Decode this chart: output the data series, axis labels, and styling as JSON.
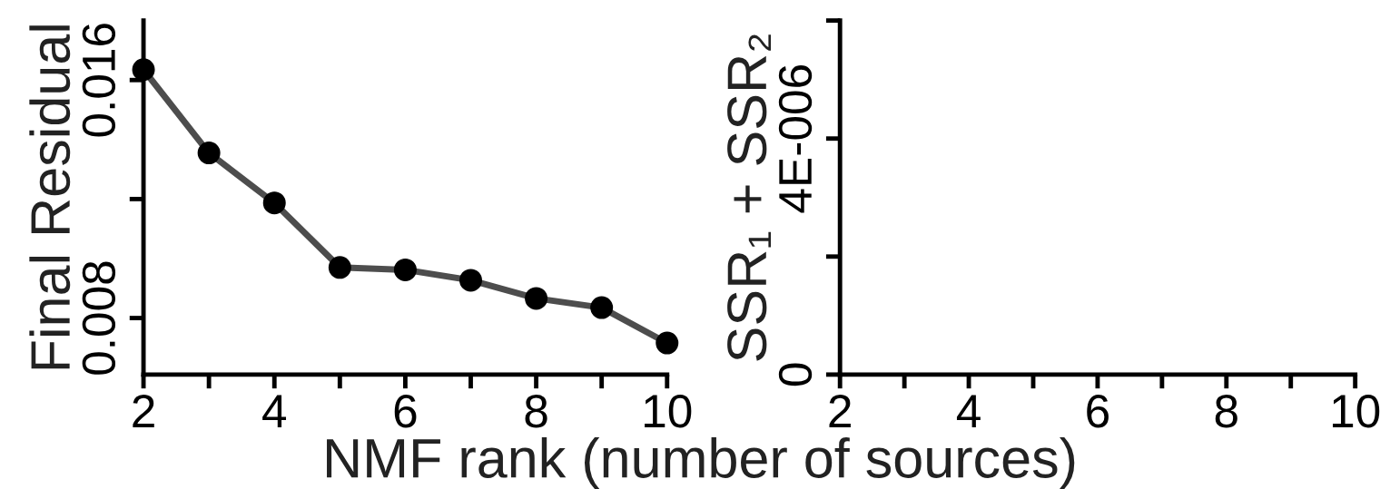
{
  "chart_data": [
    {
      "type": "line",
      "xlabel": "NMF rank (number of sources)",
      "ylabel": "Final Residual",
      "x": [
        2,
        3,
        4,
        5,
        6,
        7,
        8,
        9,
        10
      ],
      "series": [
        {
          "color": "#4d4d4d",
          "values": [
            0.01635,
            0.01355,
            0.01187,
            0.0097,
            0.00962,
            0.00927,
            0.00866,
            0.00835,
            0.00716
          ]
        }
      ],
      "marker": "circle",
      "line_style": "solid",
      "grid": false,
      "legend": false,
      "xlim": [
        2,
        10
      ],
      "xticks": [
        2,
        {
          "value": 3,
          "label": null
        },
        4,
        {
          "value": 5,
          "label": null
        },
        6,
        {
          "value": 7,
          "label": null
        },
        8,
        {
          "value": 9,
          "label": null
        },
        10
      ],
      "ylim": [
        0.0061,
        0.018
      ],
      "yticks": [
        {
          "value": 0.008,
          "label": "0.008"
        },
        {
          "value": 0.012,
          "label": null
        },
        {
          "value": 0.016,
          "label": "0.016"
        }
      ]
    },
    {
      "type": "line",
      "ylabel": "SSR₁ + SSR₂",
      "grid": false,
      "legend": false,
      "xlim": [
        2,
        10
      ],
      "xticks": [
        2,
        {
          "value": 3,
          "label": null
        },
        4,
        {
          "value": 5,
          "label": null
        },
        6,
        {
          "value": 7,
          "label": null
        },
        8,
        {
          "value": 9,
          "label": null
        },
        10
      ],
      "ylim": [
        0,
        6e-06
      ],
      "yticks": [
        0,
        {
          "value": 2e-06,
          "label": null
        },
        {
          "value": 4e-06,
          "label": "4E-006"
        },
        {
          "value": 6e-06,
          "label": null
        }
      ]
    }
  ]
}
